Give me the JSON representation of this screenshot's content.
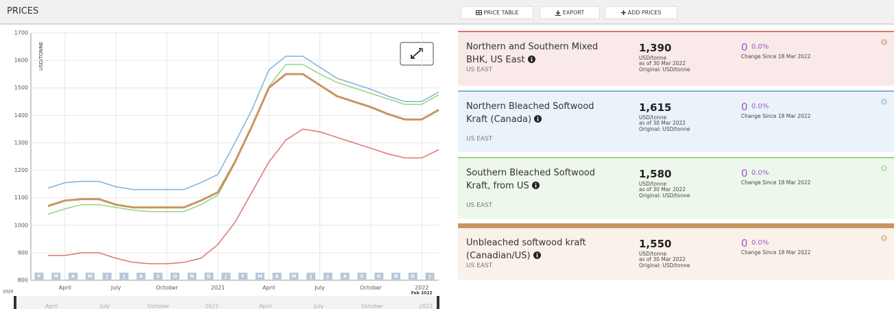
{
  "header": {
    "title": "PRICES",
    "buttons": [
      "PRICE TABLE",
      "EXPORT",
      "ADD PRICES"
    ]
  },
  "chart_data": {
    "type": "line",
    "y_label": "USD/TONNE",
    "categories": [
      "F",
      "M",
      "A",
      "M",
      "J",
      "J",
      "A",
      "S",
      "O",
      "N",
      "D",
      "J",
      "F",
      "M",
      "A",
      "M",
      "J",
      "J",
      "A",
      "S",
      "O",
      "N",
      "D",
      "J"
    ],
    "x_labels": [
      "April",
      "July",
      "October",
      "2021",
      "April",
      "July",
      "October",
      "2022"
    ],
    "x_sublabel": "Feb 2022",
    "ylim": [
      800,
      1700
    ],
    "yticks": [
      800,
      900,
      1000,
      1100,
      1200,
      1300,
      1400,
      1500,
      1600,
      1700
    ],
    "grid": true,
    "series": [
      {
        "color": "#7fb0d8",
        "values": [
          1135,
          1155,
          1160,
          1160,
          1140,
          1130,
          1130,
          1130,
          1130,
          1155,
          1185,
          1300,
          1420,
          1565,
          1615,
          1615,
          1575,
          1535,
          1515,
          1495,
          1470,
          1450,
          1450,
          1485
        ]
      },
      {
        "color": "#93d47f",
        "values": [
          1040,
          1060,
          1075,
          1075,
          1065,
          1055,
          1050,
          1050,
          1050,
          1075,
          1110,
          1225,
          1360,
          1505,
          1585,
          1585,
          1550,
          1520,
          1500,
          1480,
          1460,
          1440,
          1440,
          1475
        ]
      },
      {
        "color": "#d9746f",
        "values": [
          890,
          890,
          900,
          900,
          880,
          865,
          860,
          860,
          865,
          880,
          930,
          1010,
          1120,
          1230,
          1310,
          1350,
          1340,
          1320,
          1300,
          1280,
          1260,
          1245,
          1245,
          1275
        ]
      },
      {
        "color": "#c8955f",
        "values": [
          1070,
          1090,
          1095,
          1095,
          1075,
          1065,
          1065,
          1065,
          1065,
          1090,
          1120,
          1230,
          1360,
          1500,
          1550,
          1550,
          1510,
          1470,
          1450,
          1430,
          1405,
          1385,
          1385,
          1420
        ]
      }
    ],
    "navigator": {
      "start_label": "1020",
      "labels": [
        "April",
        "July",
        "October",
        "2021",
        "April",
        "July",
        "October",
        "2022"
      ]
    }
  },
  "cards": [
    {
      "name": "Northern and Southern Mixed BHK, US East",
      "region": "US EAST",
      "price": "1,390",
      "unit": "USD/tonne",
      "as_of": "as of 30 Mar 2022",
      "original": "Original: USD/tonne",
      "change": "0",
      "change_pct": "0.0%",
      "change_since": "Change Since 18 Mar 2022",
      "color": "#d9746f",
      "background": "#f9e9e9"
    },
    {
      "name": "Northern Bleached Softwood Kraft (Canada)",
      "region": "US EAST",
      "price": "1,615",
      "unit": "USD/tonne",
      "as_of": "as of 30 Mar 2022",
      "original": "Original: USD/tonne",
      "change": "0",
      "change_pct": "0.0%",
      "change_since": "Change Since 18 Mar 2022",
      "color": "#7fb0d8",
      "background": "#eaf3f9"
    },
    {
      "name": "Southern Bleached Softwood Kraft, from US",
      "region": "US EAST",
      "price": "1,580",
      "unit": "USD/tonne",
      "as_of": "as of 30 Mar 2022",
      "original": "Original: USD/tonne",
      "change": "0",
      "change_pct": "0.0%",
      "change_since": "Change Since 18 Mar 2022",
      "color": "#93d47f",
      "background": "#eef7eb"
    },
    {
      "name": "Unbleached softwood kraft (Canadian/US)",
      "region": "US EAST",
      "price": "1,550",
      "unit": "USD/tonne",
      "as_of": "as of 30 Mar 2022",
      "original": "Original: USD/tonne",
      "change": "0",
      "change_pct": "0.0%",
      "change_since": "Change Since 18 Mar 2022",
      "color": "#c8955f",
      "background": "#f9f1ea"
    }
  ]
}
